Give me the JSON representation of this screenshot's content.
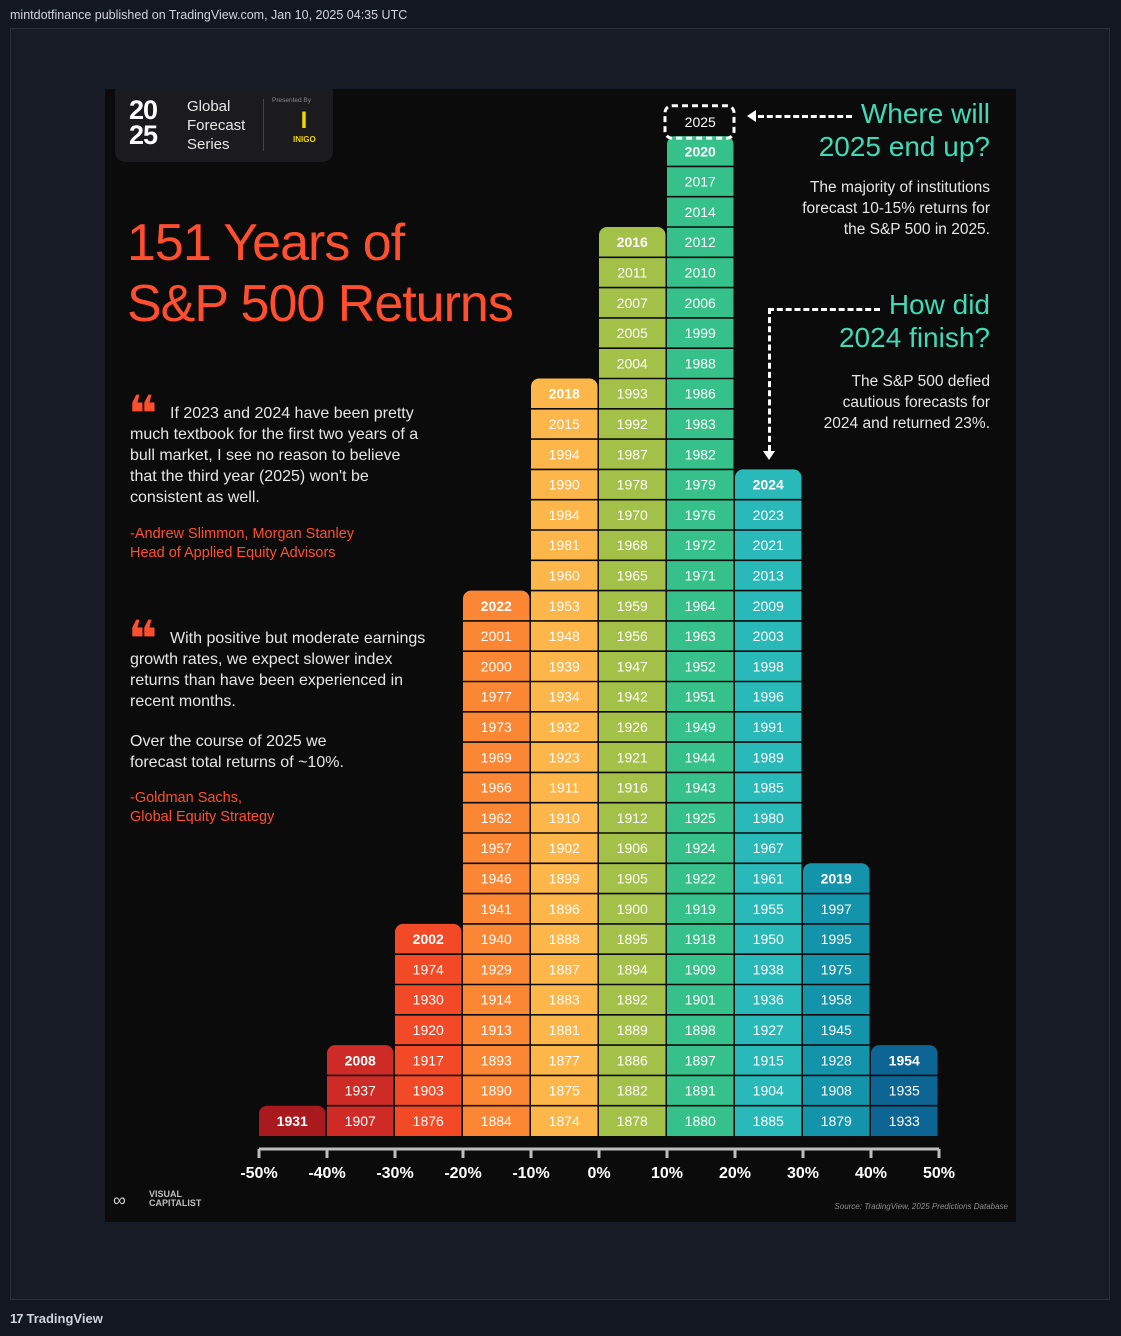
{
  "header": {
    "published": "mintdotfinance published on TradingView.com, Jan 10, 2025 04:35 UTC"
  },
  "footer": {
    "brand": "TradingView",
    "logo_glyph": "17"
  },
  "poster": {
    "badge": {
      "year_top": "20",
      "year_bottom": "25",
      "series": [
        "Global",
        "Forecast",
        "Series"
      ],
      "presented_by": "Presented By",
      "sponsor": "INIGO",
      "sponsor_glyph": "I"
    },
    "title": [
      "151 Years of",
      "S&P 500 Returns"
    ],
    "quote1": {
      "text": "If 2023 and 2024 have been pretty much textbook for the first two years of a bull market, I see no reason to believe that the third year (2025) won't be consistent as well.",
      "attribution": [
        "-Andrew Slimmon, Morgan Stanley",
        "Head of Applied Equity Advisors"
      ]
    },
    "quote2": {
      "text": "With positive but moderate earnings growth rates, we expect slower index returns than have been experienced in recent months.",
      "text2": "Over the course of 2025 we forecast total returns of ~10%.",
      "attribution": [
        "-Goldman Sachs,",
        "Global Equity Strategy"
      ]
    },
    "quote_mark": "❝",
    "callout1": {
      "head": [
        "Where will",
        "2025 end up?"
      ],
      "body": [
        "The majority of institutions",
        "forecast 10-15% returns for",
        "the S&P 500 in 2025."
      ]
    },
    "callout2": {
      "head": [
        "How did",
        "2024 finish?"
      ],
      "body": [
        "The S&P 500 defied",
        "cautious forecasts for",
        "2024 and returned 23%."
      ]
    },
    "logo": [
      "VISUAL",
      "CAPITALIST"
    ],
    "logo_glyph": "∞",
    "source": "Source: TradingView, 2025 Predictions Database"
  },
  "chart_data": {
    "type": "bar",
    "xlabel": "",
    "ylabel": "",
    "categories": [
      "-50%",
      "-40%",
      "-30%",
      "-20%",
      "-10%",
      "0%",
      "10%",
      "20%",
      "30%",
      "40%",
      "50%"
    ],
    "x_ticks": [
      "-50%",
      "-40%",
      "-30%",
      "-20%",
      "-10%",
      "0%",
      "10%",
      "20%",
      "30%",
      "40%",
      "50%"
    ],
    "forecast_year": "2025",
    "bins": [
      {
        "range": "-50% to -40%",
        "color": "#a81a1d",
        "years": [
          "1931"
        ]
      },
      {
        "range": "-40% to -30%",
        "color": "#cf2b26",
        "years": [
          "1907",
          "1937",
          "2008"
        ]
      },
      {
        "range": "-30% to -20%",
        "color": "#f24a26",
        "years": [
          "1876",
          "1903",
          "1917",
          "1920",
          "1930",
          "1974",
          "2002"
        ]
      },
      {
        "range": "-20% to -10%",
        "color": "#fb8634",
        "years": [
          "1884",
          "1890",
          "1893",
          "1913",
          "1914",
          "1929",
          "1940",
          "1941",
          "1946",
          "1957",
          "1962",
          "1966",
          "1969",
          "1973",
          "1977",
          "2000",
          "2001",
          "2022"
        ]
      },
      {
        "range": "-10% to 0%",
        "color": "#fcb64a",
        "years": [
          "1874",
          "1875",
          "1877",
          "1881",
          "1883",
          "1887",
          "1888",
          "1896",
          "1899",
          "1902",
          "1910",
          "1911",
          "1923",
          "1932",
          "1934",
          "1939",
          "1948",
          "1953",
          "1960",
          "1981",
          "1984",
          "1990",
          "1994",
          "2015",
          "2018"
        ]
      },
      {
        "range": "0% to 10%",
        "color": "#a3c149",
        "years": [
          "1878",
          "1882",
          "1886",
          "1889",
          "1892",
          "1894",
          "1895",
          "1900",
          "1905",
          "1906",
          "1912",
          "1916",
          "1921",
          "1926",
          "1942",
          "1947",
          "1956",
          "1959",
          "1965",
          "1968",
          "1970",
          "1978",
          "1987",
          "1992",
          "1993",
          "2004",
          "2005",
          "2007",
          "2011",
          "2016"
        ]
      },
      {
        "range": "10% to 20%",
        "color": "#36c18b",
        "years": [
          "1880",
          "1891",
          "1897",
          "1898",
          "1901",
          "1909",
          "1918",
          "1919",
          "1922",
          "1924",
          "1925",
          "1943",
          "1944",
          "1949",
          "1951",
          "1952",
          "1963",
          "1964",
          "1971",
          "1972",
          "1976",
          "1979",
          "1982",
          "1983",
          "1986",
          "1988",
          "1999",
          "2006",
          "2010",
          "2012",
          "2014",
          "2017",
          "2020"
        ]
      },
      {
        "range": "20% to 30%",
        "color": "#28b9b8",
        "years": [
          "1885",
          "1904",
          "1915",
          "1927",
          "1936",
          "1938",
          "1950",
          "1955",
          "1961",
          "1967",
          "1980",
          "1985",
          "1989",
          "1991",
          "1996",
          "1998",
          "2003",
          "2009",
          "2013",
          "2021",
          "2023",
          "2024"
        ]
      },
      {
        "range": "30% to 40%",
        "color": "#1494ab",
        "years": [
          "1879",
          "1908",
          "1928",
          "1945",
          "1958",
          "1975",
          "1995",
          "1997",
          "2019"
        ]
      },
      {
        "range": "40% to 50%",
        "color": "#0d6593",
        "years": [
          "1933",
          "1935",
          "1954"
        ]
      }
    ]
  }
}
